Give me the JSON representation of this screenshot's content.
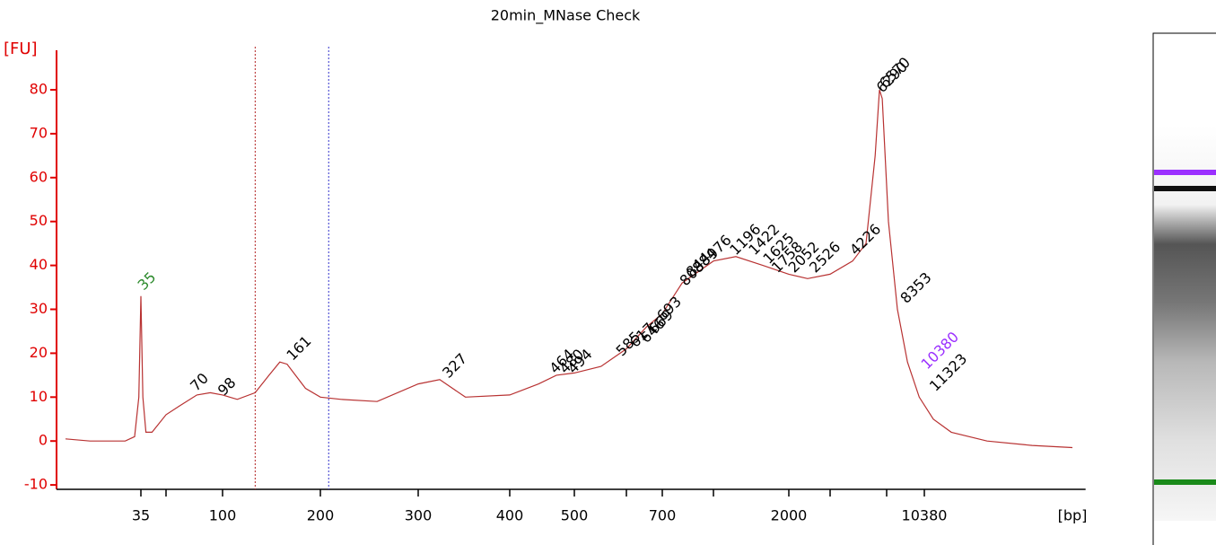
{
  "chart_data": {
    "type": "line",
    "title": "20min_MNase Check",
    "y_label": "[FU]",
    "x_label": "[bp]",
    "log_like_x": true,
    "axis_color": "#e00000",
    "color": "#b83232",
    "ylim": [
      -11,
      89
    ],
    "yticks": [
      -10,
      0,
      10,
      20,
      30,
      40,
      50,
      60,
      70,
      80
    ],
    "xlim": [
      11,
      56000
    ],
    "xticks": [
      35,
      {
        "value": 50,
        "label": null
      },
      100,
      200,
      300,
      400,
      500,
      {
        "value": 600,
        "label": null
      },
      700,
      {
        "value": 1000,
        "label": null
      },
      2000,
      {
        "value": 3000,
        "label": null
      },
      {
        "value": 7000,
        "label": null
      },
      10380
    ],
    "x": [
      12,
      17,
      28,
      32,
      34,
      35,
      36,
      37.6,
      41,
      50,
      59,
      73,
      86,
      100,
      111,
      126,
      139,
      150,
      158,
      180,
      200,
      218,
      253,
      300,
      321,
      348,
      400,
      442,
      470,
      500,
      549,
      600,
      654,
      700,
      804,
      1000,
      1229,
      1575,
      2000,
      2404,
      3000,
      4204,
      5138,
      5890,
      6290,
      6550,
      7132,
      7834,
      8700,
      9838,
      11400,
      13750,
      20000,
      32000,
      48800
    ],
    "values": [
      0.5,
      0,
      0,
      1,
      10,
      33,
      10,
      2,
      2,
      6,
      8,
      10.5,
      11,
      10.5,
      9.5,
      11,
      15,
      18,
      17.5,
      12,
      10,
      9.5,
      9,
      13,
      14,
      10,
      10.5,
      13,
      15,
      15.5,
      17,
      21,
      26,
      29,
      36,
      41,
      42,
      40,
      38,
      37,
      38,
      41,
      45,
      65,
      80,
      78,
      50,
      30,
      18,
      10,
      5,
      2,
      0,
      -1,
      -1.5
    ],
    "region_markers": [
      {
        "x": 126,
        "color": "#b22222"
      },
      {
        "x": 207,
        "color": "#3333cc"
      }
    ],
    "peaks": [
      {
        "x": 35,
        "y": 34,
        "color": "#2e8b2e"
      },
      {
        "x": 70,
        "y": 11,
        "color": "#000000"
      },
      {
        "x": 98,
        "y": 10,
        "color": "#000000"
      },
      {
        "x": 161,
        "y": 18,
        "color": "#000000"
      },
      {
        "x": 327,
        "y": 14,
        "color": "#000000"
      },
      {
        "x": 464,
        "y": 15,
        "color": "#000000"
      },
      {
        "x": 480,
        "y": 15,
        "color": "#000000"
      },
      {
        "x": 494,
        "y": 15,
        "color": "#000000"
      },
      {
        "x": 585,
        "y": 19,
        "color": "#000000"
      },
      {
        "x": 617,
        "y": 21,
        "color": "#000000"
      },
      {
        "x": 646,
        "y": 22,
        "color": "#000000"
      },
      {
        "x": 669,
        "y": 24,
        "color": "#000000"
      },
      {
        "x": 693,
        "y": 27,
        "color": "#000000"
      },
      {
        "x": 808,
        "y": 35,
        "color": "#000000"
      },
      {
        "x": 844,
        "y": 37,
        "color": "#000000"
      },
      {
        "x": 884,
        "y": 38,
        "color": "#000000"
      },
      {
        "x": 976,
        "y": 41,
        "color": "#000000"
      },
      {
        "x": 1196,
        "y": 42,
        "color": "#000000"
      },
      {
        "x": 1422,
        "y": 42,
        "color": "#000000"
      },
      {
        "x": 1625,
        "y": 40,
        "color": "#000000"
      },
      {
        "x": 1758,
        "y": 38,
        "color": "#000000"
      },
      {
        "x": 2052,
        "y": 38,
        "color": "#000000"
      },
      {
        "x": 2526,
        "y": 38,
        "color": "#000000"
      },
      {
        "x": 4226,
        "y": 42,
        "color": "#000000"
      },
      {
        "x": 6290,
        "y": 79,
        "color": "#000000"
      },
      {
        "x": 6570,
        "y": 80,
        "color": "#000000"
      },
      {
        "x": 8353,
        "y": 31,
        "color": "#000000"
      },
      {
        "x": 10380,
        "y": 16,
        "color": "#9b30ff"
      },
      {
        "x": 11323,
        "y": 11,
        "color": "#000000"
      }
    ]
  }
}
